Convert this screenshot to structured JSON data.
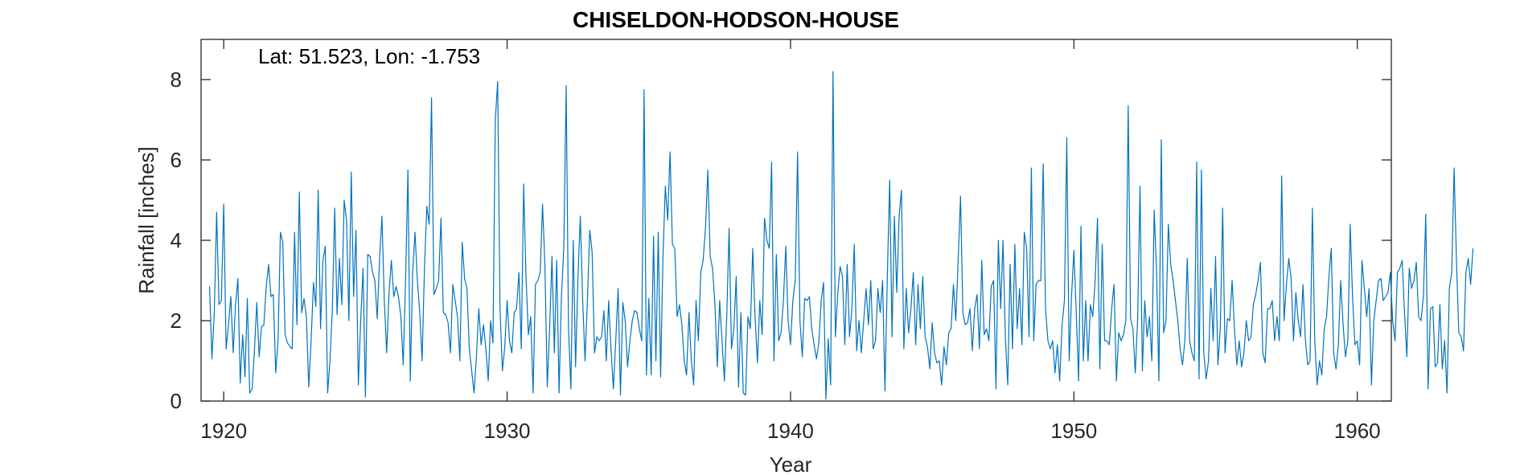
{
  "chart_data": {
    "type": "line",
    "title": "CHISELDON-HODSON-HOUSE",
    "annotation": "Lat: 51.523, Lon: -1.753",
    "xlabel": "Year",
    "ylabel": "Rainfall [inches]",
    "xlim": [
      1919.2,
      1961.2
    ],
    "ylim": [
      0,
      9
    ],
    "xticks": [
      1920,
      1930,
      1940,
      1950,
      1960
    ],
    "yticks": [
      0,
      2,
      4,
      6,
      8
    ],
    "grid": false,
    "line_color": "#0072BD",
    "series": [
      {
        "x_start": 1919.5,
        "x_step": 0.08333,
        "values": [
          2.85,
          1.05,
          2.2,
          4.7,
          2.4,
          2.5,
          4.9,
          1.3,
          1.9,
          2.6,
          1.2,
          2.4,
          3.05,
          0.45,
          1.65,
          0.6,
          2.55,
          0.2,
          0.3,
          1.25,
          2.45,
          1.1,
          1.85,
          1.9,
          2.85,
          3.4,
          2.6,
          2.65,
          0.7,
          1.5,
          4.2,
          3.95,
          1.65,
          1.45,
          1.35,
          1.3,
          4.2,
          1.9,
          5.2,
          2.2,
          2.55,
          2.1,
          0.35,
          1.5,
          2.95,
          2.35,
          5.25,
          1.8,
          3.5,
          3.85,
          0.2,
          1.0,
          2.3,
          4.8,
          2.15,
          3.55,
          2.4,
          5.0,
          4.5,
          2.0,
          5.7,
          2.6,
          4.25,
          0.4,
          2.0,
          3.3,
          0.1,
          3.65,
          3.6,
          3.2,
          3.0,
          2.05,
          3.55,
          4.6,
          2.5,
          1.2,
          2.7,
          3.5,
          2.6,
          2.85,
          2.6,
          2.1,
          0.9,
          3.0,
          5.75,
          0.5,
          3.2,
          4.2,
          3.0,
          2.2,
          1.0,
          3.3,
          4.85,
          4.4,
          7.55,
          2.65,
          2.8,
          3.0,
          4.55,
          2.2,
          2.15,
          1.95,
          1.2,
          2.9,
          2.5,
          2.1,
          1.0,
          3.95,
          3.05,
          2.8,
          1.3,
          0.75,
          0.2,
          1.1,
          2.3,
          1.4,
          1.9,
          1.3,
          0.5,
          2.0,
          1.45,
          7.0,
          7.95,
          2.3,
          0.75,
          1.35,
          2.5,
          1.5,
          1.2,
          2.2,
          2.3,
          3.2,
          1.3,
          5.4,
          3.1,
          1.65,
          2.1,
          0.2,
          2.9,
          3.0,
          3.2,
          4.9,
          3.4,
          0.35,
          1.8,
          3.6,
          1.2,
          3.5,
          0.2,
          2.6,
          3.8,
          7.85,
          1.8,
          0.3,
          4.0,
          0.85,
          3.1,
          4.6,
          2.5,
          1.0,
          2.5,
          4.25,
          3.7,
          1.2,
          1.6,
          1.5,
          1.6,
          2.25,
          1.0,
          2.5,
          1.3,
          0.3,
          1.5,
          2.8,
          0.15,
          2.45,
          2.0,
          0.85,
          1.5,
          2.0,
          2.25,
          2.2,
          1.8,
          1.5,
          7.75,
          0.65,
          2.55,
          0.65,
          4.1,
          1.0,
          4.2,
          0.6,
          3.6,
          5.35,
          4.5,
          6.2,
          3.9,
          3.8,
          2.1,
          2.4,
          1.9,
          1.0,
          0.65,
          2.2,
          1.0,
          0.4,
          2.5,
          1.5,
          3.2,
          3.5,
          4.3,
          5.75,
          3.6,
          3.3,
          2.4,
          0.85,
          2.5,
          1.5,
          0.5,
          2.1,
          4.3,
          1.3,
          1.8,
          3.1,
          0.35,
          2.2,
          0.2,
          0.15,
          2.1,
          1.8,
          3.8,
          2.1,
          0.95,
          2.5,
          1.65,
          4.55,
          4.0,
          3.8,
          5.95,
          1.0,
          3.65,
          1.5,
          1.7,
          2.5,
          3.85,
          2.0,
          1.4,
          2.5,
          3.0,
          6.2,
          2.0,
          1.1,
          2.55,
          2.5,
          2.6,
          1.8,
          1.4,
          1.05,
          1.45,
          2.5,
          2.95,
          0.05,
          1.55,
          0.4,
          8.2,
          1.6,
          2.65,
          3.35,
          3.1,
          1.4,
          3.4,
          1.6,
          2.3,
          3.9,
          1.25,
          2.0,
          1.2,
          2.0,
          2.8,
          1.9,
          3.0,
          1.3,
          1.5,
          2.8,
          2.2,
          3.0,
          0.25,
          3.1,
          5.5,
          1.6,
          4.6,
          2.7,
          4.6,
          5.25,
          1.3,
          2.8,
          1.7,
          2.3,
          3.2,
          1.4,
          2.9,
          1.8,
          3.1,
          1.6,
          1.35,
          0.8,
          1.95,
          1.2,
          0.95,
          1.0,
          0.4,
          1.35,
          0.9,
          1.7,
          1.8,
          2.9,
          2.0,
          3.5,
          5.1,
          2.2,
          1.9,
          1.95,
          2.3,
          1.25,
          2.3,
          2.65,
          1.3,
          3.5,
          1.65,
          1.8,
          1.5,
          2.85,
          3.0,
          0.3,
          4.0,
          2.3,
          4.0,
          1.55,
          0.4,
          3.4,
          1.3,
          3.9,
          1.8,
          2.8,
          1.4,
          4.2,
          3.8,
          1.6,
          5.8,
          1.5,
          2.9,
          3.0,
          3.0,
          5.9,
          2.3,
          1.5,
          1.3,
          1.5,
          0.7,
          1.4,
          0.5,
          1.9,
          2.5,
          6.55,
          1.0,
          2.6,
          3.75,
          2.2,
          0.5,
          4.35,
          1.0,
          2.5,
          1.0,
          2.4,
          2.1,
          3.0,
          4.55,
          0.8,
          3.9,
          1.5,
          1.5,
          1.4,
          2.3,
          2.9,
          0.5,
          1.7,
          1.5,
          1.65,
          2.0,
          7.35,
          2.05,
          1.8,
          0.7,
          2.05,
          5.35,
          0.75,
          2.5,
          1.6,
          2.1,
          1.0,
          4.75,
          3.25,
          0.5,
          6.5,
          1.7,
          2.0,
          4.4,
          3.4,
          3.0,
          2.5,
          2.0,
          1.3,
          0.9,
          1.5,
          3.55,
          1.5,
          1.2,
          1.0,
          5.95,
          0.55,
          5.75,
          1.2,
          0.55,
          1.0,
          2.8,
          1.5,
          3.6,
          0.9,
          1.8,
          4.8,
          1.2,
          2.05,
          2.0,
          3.0,
          1.8,
          0.9,
          1.5,
          0.85,
          1.2,
          2.0,
          1.5,
          1.6,
          2.4,
          2.65,
          3.0,
          3.45,
          1.2,
          0.95,
          2.3,
          2.3,
          2.5,
          1.5,
          2.1,
          1.5,
          5.6,
          2.0,
          2.9,
          3.55,
          3.05,
          1.5,
          2.7,
          2.0,
          1.6,
          2.9,
          1.55,
          0.9,
          1.0,
          4.8,
          1.5,
          0.4,
          1.0,
          0.65,
          1.8,
          2.1,
          3.1,
          3.8,
          1.2,
          0.8,
          1.4,
          3.0,
          1.9,
          1.1,
          1.5,
          4.4,
          2.6,
          1.4,
          1.5,
          0.9,
          3.5,
          2.8,
          2.1,
          2.8,
          0.4,
          2.0,
          2.5,
          3.0,
          3.05,
          2.5,
          2.6,
          2.7,
          3.2,
          2.0,
          1.5,
          3.2,
          3.3,
          3.5,
          2.2,
          1.1,
          3.3,
          2.8,
          3.0,
          3.45,
          2.1,
          2.0,
          2.6,
          4.65,
          0.3,
          2.3,
          2.35,
          0.85,
          0.95,
          2.4,
          0.8,
          1.5,
          0.2,
          2.8,
          3.2,
          5.8,
          3.5,
          1.7,
          1.6,
          1.25,
          3.2,
          3.55,
          2.9,
          3.8
        ]
      }
    ]
  }
}
